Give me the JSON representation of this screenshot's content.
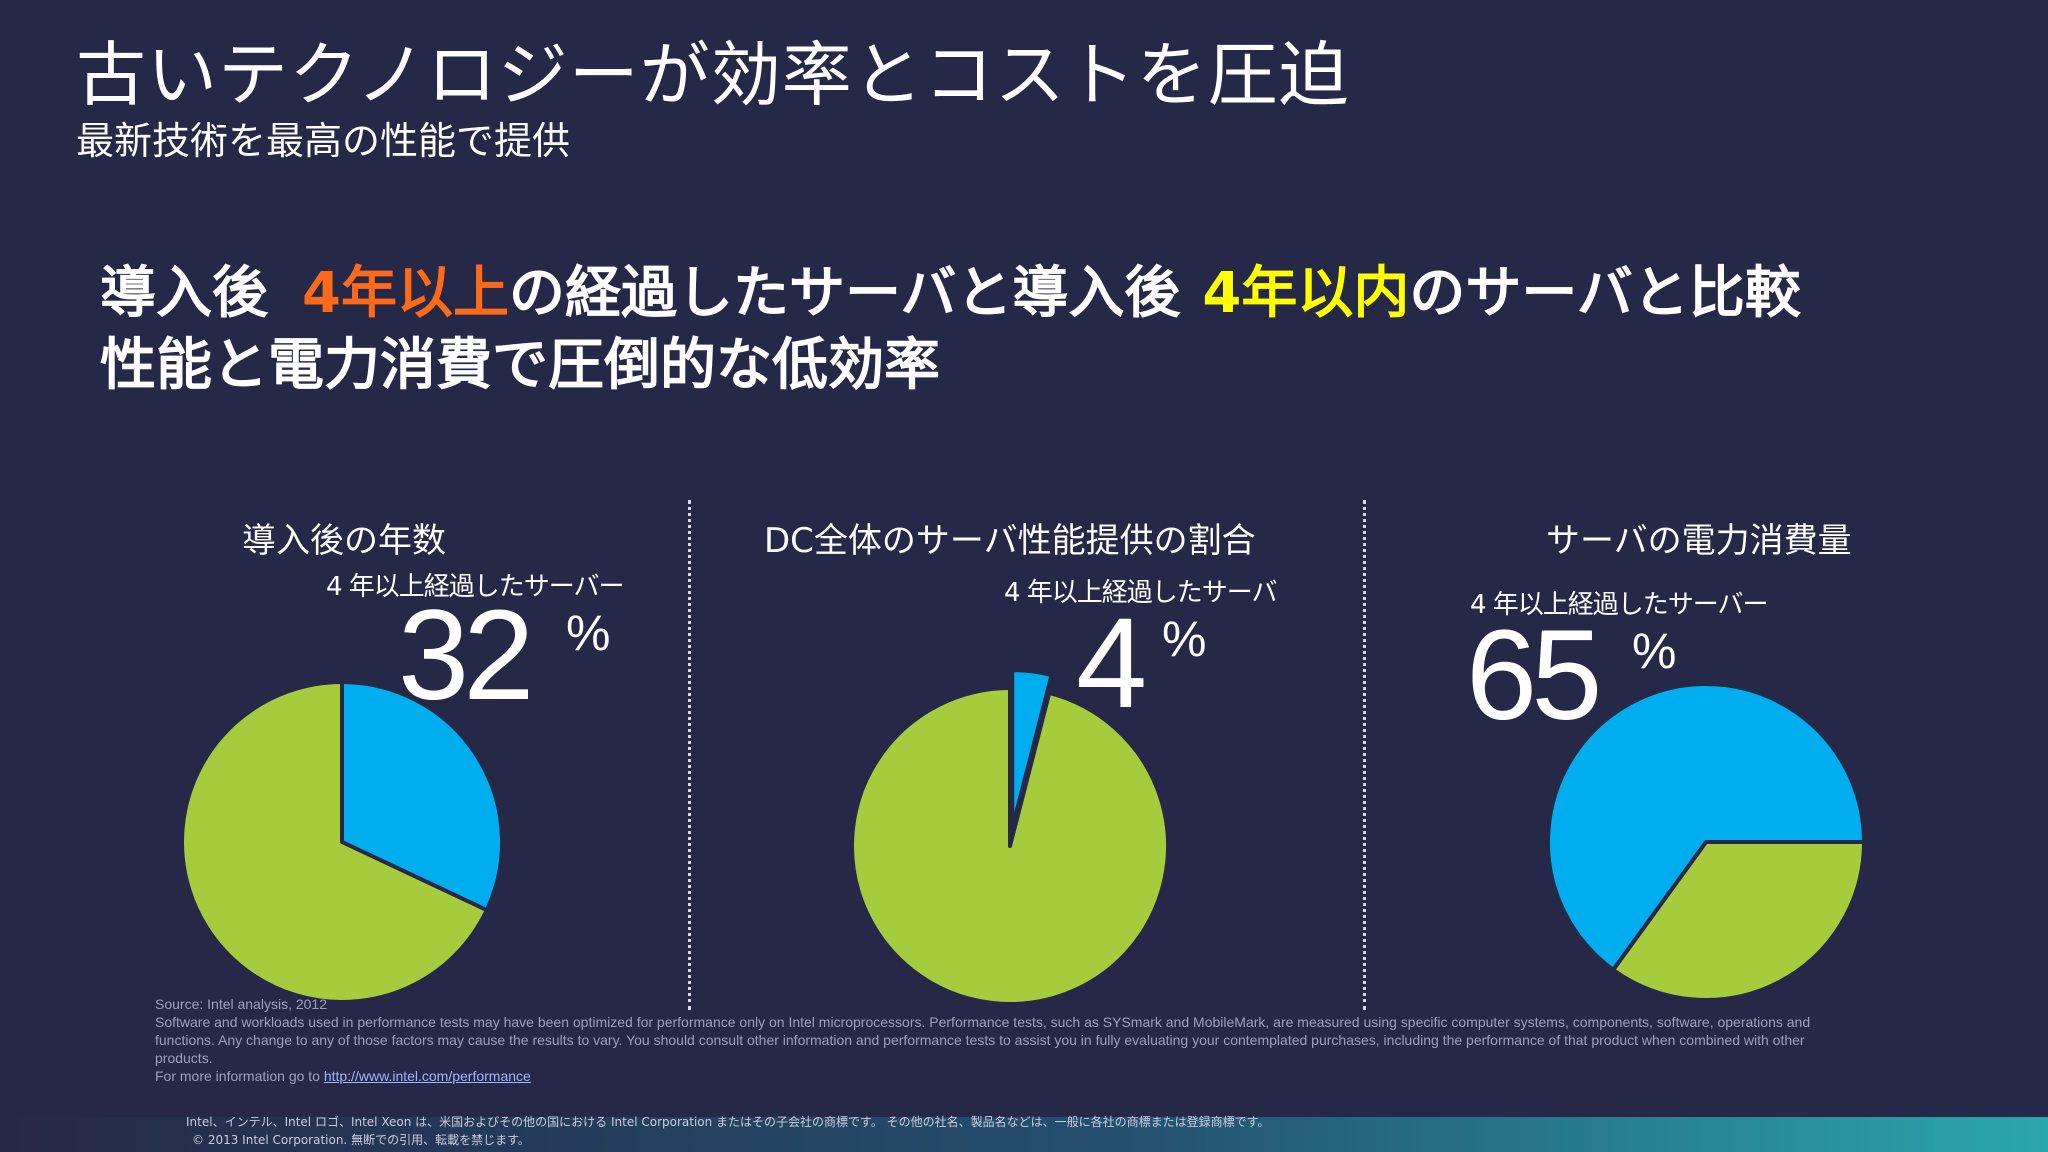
{
  "slide": {
    "title": "古いテクノロジーが効率とコストを圧迫",
    "subtitle": "最新技術を最高の性能で提供",
    "headline_line1": {
      "part1": "導入後",
      "highlight1": "4年以上",
      "part2": "の経過したサーバと導入後",
      "highlight2": "4年以内",
      "part3": "のサーバと比較"
    },
    "headline_line2": "性能と電力消費で圧倒的な低効率"
  },
  "colors": {
    "background": "#262848",
    "highlight_orange": "#ff6a1a",
    "highlight_yellow": "#ffff00",
    "pie_blue": "#00aeef",
    "pie_green": "#a6cc3d"
  },
  "chart_data": [
    {
      "type": "pie",
      "title": "導入後の年数",
      "caption": "4 年以上経過したサーバー",
      "big_value": "32",
      "percent_sign": "%",
      "slices": [
        {
          "label": "4 年以上経過したサーバー",
          "value": 32,
          "color": "#00aeef"
        },
        {
          "value": 68,
          "color": "#a6cc3d"
        }
      ]
    },
    {
      "type": "pie",
      "title": "DC全体のサーバ性能提供の割合",
      "caption": "4 年以上経過したサーバ",
      "big_value": "4",
      "percent_sign": "%",
      "slices": [
        {
          "label": "4 年以上経過したサーバ",
          "value": 4,
          "color": "#00aeef"
        },
        {
          "value": 96,
          "color": "#a6cc3d"
        }
      ]
    },
    {
      "type": "pie",
      "title": "サーバの電力消費量",
      "caption": "4 年以上経過したサーバー",
      "big_value": "65",
      "percent_sign": "%",
      "slices": [
        {
          "value": 35,
          "color": "#a6cc3d"
        },
        {
          "label": "4 年以上経過したサーバー",
          "value": 65,
          "color": "#00aeef"
        }
      ]
    }
  ],
  "fineprint": {
    "source": "Source:  Intel analysis, 2012",
    "disclaimer": "Software and workloads used in performance tests may have been optimized for performance only on Intel microprocessors.  Performance tests, such as SYSmark and MobileMark, are measured using specific computer systems, components, software, operations and functions.  Any change to any of those factors may cause the results to vary.  You should consult other information and performance tests to assist you in fully evaluating your contemplated purchases, including the performance of that product when combined with other products.",
    "more_info_prefix": "For more information go to ",
    "more_info_link": "http://www.intel.com/performance"
  },
  "footer": {
    "trademark": "Intel、インテル、Intel ロゴ、Intel Xeon は、米国およびその他の国における Intel Corporation またはその子会社の商標です。 その他の社名、製品名などは、一般に各社の商標または登録商標です。",
    "copyright": "© 2013   Intel Corporation.  無断での引用、転載を禁じます。"
  }
}
